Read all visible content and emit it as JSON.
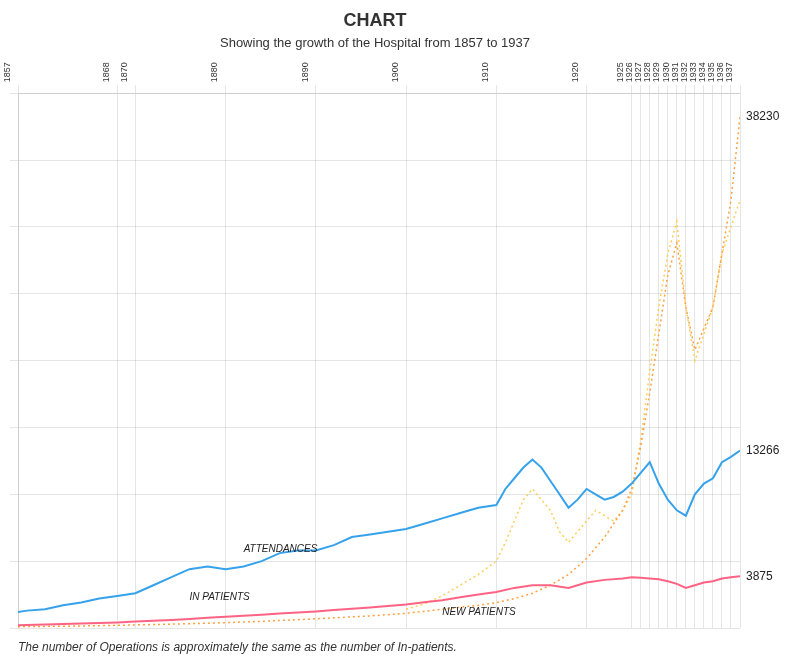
{
  "chart_data": {
    "type": "line",
    "title": "CHART",
    "subtitle": "Showing the growth of the Hospital from 1857 to 1937",
    "footnote": "The number of Operations is approximately the same as the number of In-patients.",
    "xlim": [
      1857,
      1937
    ],
    "xticks": [
      1857,
      1868,
      1870,
      1880,
      1890,
      1900,
      1910,
      1920,
      1925,
      1926,
      1927,
      1928,
      1929,
      1930,
      1931,
      1932,
      1933,
      1934,
      1935,
      1936,
      1937
    ],
    "ylim": [
      0,
      40000
    ],
    "yticks": [
      0,
      5000,
      10000,
      15000,
      20000,
      25000,
      30000,
      35000,
      40000
    ],
    "grid": true,
    "tick_labels": "x",
    "legend": false,
    "series": [
      {
        "line_style": "solid",
        "x": [
          1857,
          1858,
          1860,
          1862,
          1864,
          1866,
          1868,
          1870,
          1872,
          1874,
          1876,
          1878,
          1880,
          1882,
          1884,
          1886,
          1888,
          1890,
          1892,
          1894,
          1896,
          1898,
          1900,
          1902,
          1904,
          1906,
          1908,
          1910,
          1911,
          1912,
          1913,
          1914,
          1915,
          1916,
          1917,
          1918,
          1919,
          1920,
          1921,
          1922,
          1923,
          1924,
          1925,
          1926,
          1927,
          1928,
          1929,
          1930,
          1931,
          1932,
          1933,
          1934,
          1935,
          1936,
          1937
        ],
        "values": [
          1200,
          1300,
          1400,
          1700,
          1900,
          2200,
          2400,
          2600,
          3200,
          3800,
          4400,
          4600,
          4400,
          4600,
          5000,
          5600,
          5800,
          5800,
          6200,
          6800,
          7000,
          7200,
          7400,
          7800,
          8200,
          8600,
          9000,
          9200,
          10400,
          11200,
          12000,
          12600,
          12000,
          11000,
          10000,
          9000,
          9600,
          10400,
          10000,
          9600,
          9800,
          10200,
          10800,
          11600,
          12400,
          10800,
          9600,
          8800,
          8400,
          10000,
          10800,
          11200,
          12400,
          12800,
          13266
        ]
      },
      {
        "line_style": "solid",
        "x": [
          1857,
          1858,
          1860,
          1862,
          1864,
          1866,
          1868,
          1870,
          1872,
          1874,
          1876,
          1878,
          1880,
          1882,
          1884,
          1886,
          1888,
          1890,
          1892,
          1894,
          1896,
          1898,
          1900,
          1902,
          1904,
          1906,
          1908,
          1910,
          1912,
          1914,
          1916,
          1918,
          1920,
          1922,
          1924,
          1925,
          1926,
          1927,
          1928,
          1929,
          1930,
          1931,
          1932,
          1933,
          1934,
          1935,
          1936,
          1937
        ],
        "values": [
          200,
          220,
          260,
          300,
          340,
          380,
          420,
          480,
          540,
          600,
          680,
          760,
          840,
          920,
          1000,
          1080,
          1160,
          1240,
          1340,
          1440,
          1540,
          1640,
          1760,
          1920,
          2080,
          2300,
          2500,
          2700,
          3000,
          3200,
          3200,
          3000,
          3400,
          3600,
          3700,
          3800,
          3750,
          3700,
          3650,
          3500,
          3300,
          3000,
          3200,
          3400,
          3500,
          3700,
          3800,
          3875
        ]
      },
      {
        "line_style": "dotted",
        "x": [
          1857,
          1860,
          1864,
          1868,
          1872,
          1876,
          1880,
          1884,
          1888,
          1892,
          1896,
          1900,
          1904,
          1908,
          1910,
          1912,
          1914,
          1916,
          1918,
          1920,
          1922,
          1924,
          1925,
          1926,
          1927,
          1928,
          1929,
          1930,
          1931,
          1932,
          1933,
          1934,
          1935,
          1936,
          1937
        ],
        "values": [
          100,
          120,
          150,
          200,
          260,
          320,
          400,
          500,
          620,
          760,
          900,
          1100,
          1400,
          1700,
          1900,
          2200,
          2600,
          3200,
          4000,
          5200,
          6800,
          8800,
          10400,
          13600,
          17600,
          22000,
          26400,
          28800,
          24000,
          20800,
          22400,
          24000,
          28000,
          32000,
          38230
        ]
      },
      {
        "line_style": "dotted",
        "x": [
          1900,
          1902,
          1904,
          1906,
          1908,
          1910,
          1911,
          1912,
          1913,
          1914,
          1915,
          1916,
          1917,
          1918,
          1919,
          1920,
          1921,
          1922,
          1923,
          1924,
          1925,
          1926,
          1927,
          1928,
          1929,
          1930,
          1931,
          1932,
          1933,
          1934,
          1935,
          1936,
          1937
        ],
        "values": [
          1400,
          1800,
          2400,
          3200,
          4000,
          5000,
          6400,
          8000,
          9600,
          10400,
          9600,
          8800,
          7200,
          6400,
          7200,
          8000,
          8800,
          8400,
          8000,
          8800,
          10000,
          14000,
          19200,
          24000,
          28000,
          30400,
          24000,
          20000,
          22000,
          24000,
          28000,
          30000,
          32000
        ]
      }
    ],
    "annotations": [
      {
        "text": "ATTENDANCES",
        "x": 1882,
        "y": 5500
      },
      {
        "text": "IN PATIENTS",
        "x": 1876,
        "y": 1900
      },
      {
        "text": "NEW PATIENTS",
        "x": 1904,
        "y": 800
      },
      {
        "text": "3875",
        "x": 1937,
        "y": 3875
      },
      {
        "text": "38230",
        "x": 1937,
        "y": 38230
      },
      {
        "text": "13266",
        "x": 1937,
        "y": 13266
      }
    ]
  }
}
